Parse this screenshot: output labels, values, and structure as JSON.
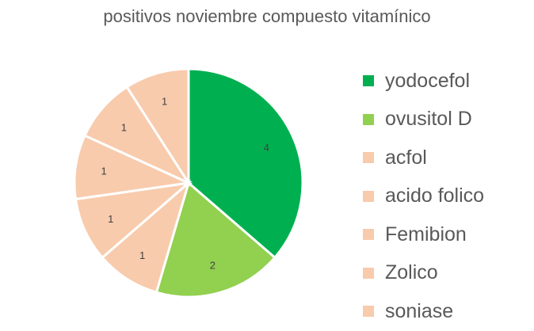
{
  "chart_data": {
    "type": "pie",
    "title": "positivos noviembre compuesto vitamínico",
    "categories": [
      "yodocefol",
      "ovusitol D",
      "acfol",
      "acido folico",
      "Femibion",
      "Zolico",
      "soniase"
    ],
    "values": [
      4,
      2,
      1,
      1,
      1,
      1,
      1
    ],
    "colors": [
      "#00b050",
      "#92d050",
      "#f8cbad",
      "#f8cbad",
      "#f8cbad",
      "#f8cbad",
      "#f8cbad"
    ],
    "data_labels": [
      "4",
      "2",
      "1",
      "1",
      "1",
      "1",
      "1"
    ],
    "legend_position": "right"
  }
}
